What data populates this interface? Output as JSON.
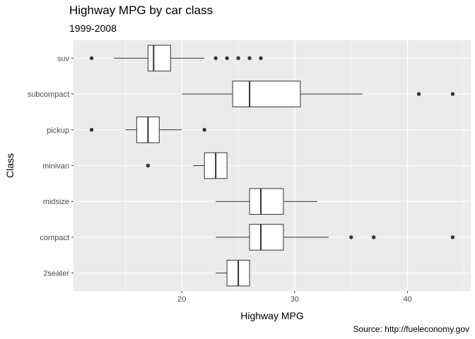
{
  "chart_data": {
    "type": "boxplot",
    "orientation": "horizontal",
    "title": "Highway MPG by car class",
    "subtitle": "1999-2008",
    "caption": "Source: http://fueleconomy.gov",
    "xlabel": "Highway MPG",
    "ylabel": "Class",
    "xlim": [
      10.4,
      45.6
    ],
    "x_ticks": [
      20,
      30,
      40
    ],
    "grid": true,
    "categories": [
      "2seater",
      "compact",
      "midsize",
      "minivan",
      "pickup",
      "subcompact",
      "suv"
    ],
    "boxes": [
      {
        "category": "2seater",
        "whisker_low": 23,
        "q1": 24,
        "median": 25,
        "q3": 26,
        "whisker_high": 26,
        "outliers": []
      },
      {
        "category": "compact",
        "whisker_low": 23,
        "q1": 26,
        "median": 27,
        "q3": 29,
        "whisker_high": 33,
        "outliers": [
          35,
          37,
          44
        ]
      },
      {
        "category": "midsize",
        "whisker_low": 23,
        "q1": 26,
        "median": 27,
        "q3": 29,
        "whisker_high": 32,
        "outliers": []
      },
      {
        "category": "minivan",
        "whisker_low": 21,
        "q1": 22,
        "median": 23,
        "q3": 24,
        "whisker_high": 24,
        "outliers": [
          17
        ]
      },
      {
        "category": "pickup",
        "whisker_low": 15,
        "q1": 16,
        "median": 17,
        "q3": 18,
        "whisker_high": 20,
        "outliers": [
          12,
          22
        ]
      },
      {
        "category": "subcompact",
        "whisker_low": 20,
        "q1": 24.5,
        "median": 26,
        "q3": 30.5,
        "whisker_high": 36,
        "outliers": [
          41,
          44
        ]
      },
      {
        "category": "suv",
        "whisker_low": 14,
        "q1": 17,
        "median": 17.5,
        "q3": 19,
        "whisker_high": 22,
        "outliers": [
          12,
          23,
          24,
          25,
          26,
          27
        ]
      }
    ]
  }
}
